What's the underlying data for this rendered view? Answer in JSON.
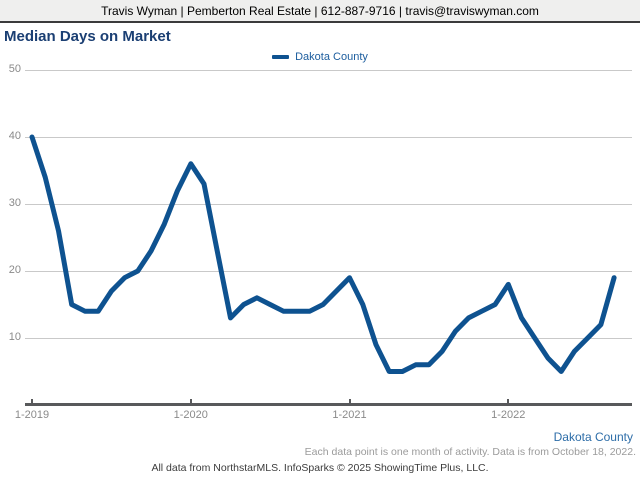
{
  "header": {
    "contact_line": "Travis Wyman | Pemberton Real Estate | 612-887-9716 | travis@traviswyman.com"
  },
  "title": "Median Days on Market",
  "legend": {
    "label": "Dakota County"
  },
  "footer": {
    "series_label": "Dakota County",
    "note": "Each data point is one month of activity. Data is from October 18, 2022.",
    "attribution": "All data from NorthstarMLS. InfoSparks © 2025 ShowingTime Plus, LLC."
  },
  "colors": {
    "line": "#0e5290",
    "title_text": "#1b3f73",
    "legend_text": "#1c5d9e",
    "grid": "#c9c9c9",
    "axis": "#58595b",
    "tick_text": "#8a8a8a",
    "note_text": "#9b9b9b",
    "attribution_text": "#3c3c3c",
    "header_bg": "#efefee"
  },
  "chart_data": {
    "type": "line",
    "title": "Median Days on Market",
    "xlabel": "",
    "ylabel": "",
    "x_start": "2019-01",
    "x_interval": "month",
    "x_tick_labels": [
      "1-2019",
      "1-2020",
      "1-2021",
      "1-2022"
    ],
    "x_tick_month_indices": [
      0,
      12,
      24,
      36
    ],
    "y_ticks": [
      50,
      40,
      30,
      20,
      10
    ],
    "ylim": [
      0,
      50
    ],
    "grid": "horizontal",
    "legend_position": "top-center",
    "series": [
      {
        "name": "Dakota County",
        "values": [
          40,
          34,
          26,
          15,
          14,
          14,
          17,
          19,
          20,
          23,
          27,
          32,
          36,
          33,
          23,
          13,
          15,
          16,
          15,
          14,
          14,
          14,
          15,
          17,
          19,
          15,
          9,
          5,
          5,
          6,
          6,
          8,
          11,
          13,
          14,
          15,
          18,
          13,
          10,
          7,
          5,
          8,
          10,
          12,
          19
        ]
      }
    ]
  }
}
